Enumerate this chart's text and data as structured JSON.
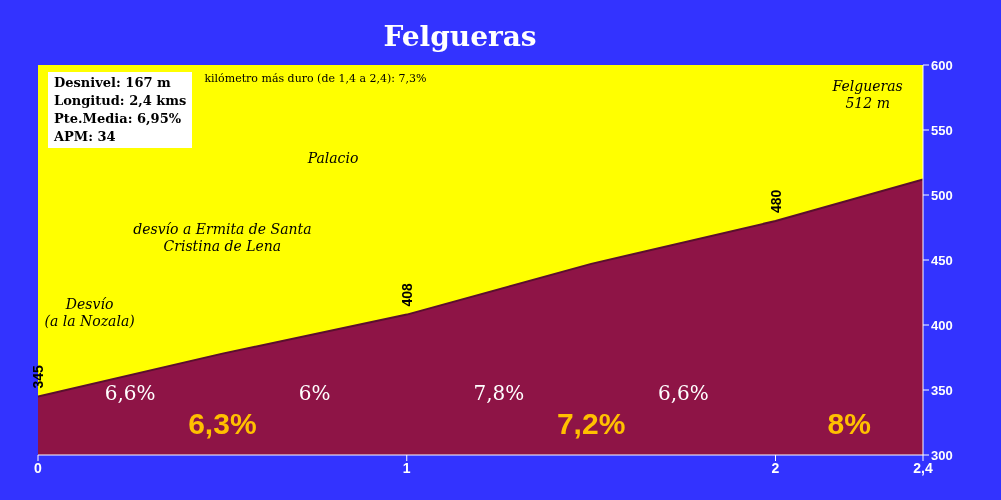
{
  "chart_data": {
    "type": "area",
    "title": "Felgueras",
    "x": [
      0,
      0.5,
      1,
      1.5,
      2,
      2.4
    ],
    "series": [
      {
        "color": "#8e1446",
        "values": [
          345,
          378,
          408,
          447,
          480,
          512
        ],
        "value_labels": [
          "345",
          null,
          "408",
          null,
          "480",
          null
        ]
      }
    ],
    "xlim": [
      0,
      2.4
    ],
    "xticks": [
      0,
      1,
      2,
      {
        "value": 2.4,
        "label": "2,4"
      }
    ],
    "ylim": [
      300,
      600
    ],
    "yticks": [
      300,
      350,
      400,
      450,
      500,
      550,
      600
    ],
    "grid": false,
    "legend": false,
    "annotations": [
      "Desnivel: 167 m",
      "Longitud: 2,4 kms",
      "Pte.Media: 6,95%",
      "APM: 34",
      "kilómetro más duro (de 1,4 a 2,4):  7,3%",
      "6,6%",
      "6%",
      "7,8%",
      "6,6%",
      "6,3%",
      "7,2%",
      "8%",
      "Desvío\n(a la Nozala)",
      "desvío a Ermita de Santa\nCristina de Lena",
      "Palacio",
      "Felgueras\n512 m"
    ]
  }
}
